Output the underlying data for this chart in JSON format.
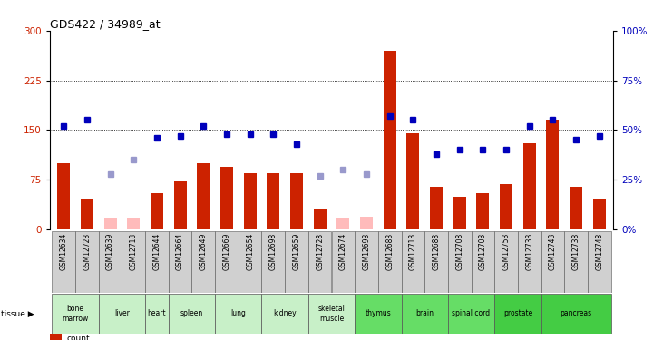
{
  "title": "GDS422 / 34989_at",
  "samples": [
    "GSM12634",
    "GSM12723",
    "GSM12639",
    "GSM12718",
    "GSM12644",
    "GSM12664",
    "GSM12649",
    "GSM12669",
    "GSM12654",
    "GSM12698",
    "GSM12659",
    "GSM12728",
    "GSM12674",
    "GSM12693",
    "GSM12683",
    "GSM12713",
    "GSM12688",
    "GSM12708",
    "GSM12703",
    "GSM12753",
    "GSM12733",
    "GSM12743",
    "GSM12738",
    "GSM12748"
  ],
  "tissue_spans": [
    {
      "tissue": "bone\nmarrow",
      "start": 0,
      "end": 2,
      "color": "#c8f0c8"
    },
    {
      "tissue": "liver",
      "start": 2,
      "end": 4,
      "color": "#c8f0c8"
    },
    {
      "tissue": "heart",
      "start": 4,
      "end": 5,
      "color": "#c8f0c8"
    },
    {
      "tissue": "spleen",
      "start": 5,
      "end": 7,
      "color": "#c8f0c8"
    },
    {
      "tissue": "lung",
      "start": 7,
      "end": 9,
      "color": "#c8f0c8"
    },
    {
      "tissue": "kidney",
      "start": 9,
      "end": 11,
      "color": "#c8f0c8"
    },
    {
      "tissue": "skeletal\nmuscle",
      "start": 11,
      "end": 13,
      "color": "#c8f0c8"
    },
    {
      "tissue": "thymus",
      "start": 13,
      "end": 15,
      "color": "#66dd66"
    },
    {
      "tissue": "brain",
      "start": 15,
      "end": 17,
      "color": "#66dd66"
    },
    {
      "tissue": "spinal cord",
      "start": 17,
      "end": 19,
      "color": "#66dd66"
    },
    {
      "tissue": "prostate",
      "start": 19,
      "end": 21,
      "color": "#44cc44"
    },
    {
      "tissue": "pancreas",
      "start": 21,
      "end": 24,
      "color": "#44cc44"
    }
  ],
  "bar_values": [
    100,
    45,
    null,
    null,
    55,
    72,
    100,
    95,
    85,
    85,
    85,
    30,
    null,
    null,
    270,
    145,
    65,
    50,
    55,
    68,
    130,
    165,
    65,
    45
  ],
  "absent_bar_values": [
    null,
    null,
    18,
    18,
    null,
    null,
    null,
    null,
    null,
    null,
    null,
    null,
    18,
    20,
    null,
    null,
    null,
    null,
    null,
    null,
    null,
    null,
    null,
    null
  ],
  "percentile_values": [
    52,
    55,
    null,
    null,
    46,
    47,
    52,
    48,
    48,
    48,
    43,
    null,
    null,
    null,
    57,
    55,
    38,
    40,
    40,
    40,
    52,
    55,
    45,
    47
  ],
  "absent_pct_values": [
    null,
    null,
    28,
    35,
    null,
    null,
    null,
    null,
    null,
    null,
    null,
    27,
    30,
    28,
    null,
    null,
    null,
    null,
    null,
    null,
    null,
    null,
    null,
    null
  ],
  "bar_color": "#cc2200",
  "absent_bar_color": "#ffbbbb",
  "pct_color": "#0000bb",
  "absent_pct_color": "#9999cc",
  "ylim_left": [
    0,
    300
  ],
  "ylim_right": [
    0,
    100
  ],
  "yticks_left": [
    0,
    75,
    150,
    225,
    300
  ],
  "yticks_right": [
    0,
    25,
    50,
    75,
    100
  ],
  "hlines": [
    75,
    150,
    225
  ]
}
